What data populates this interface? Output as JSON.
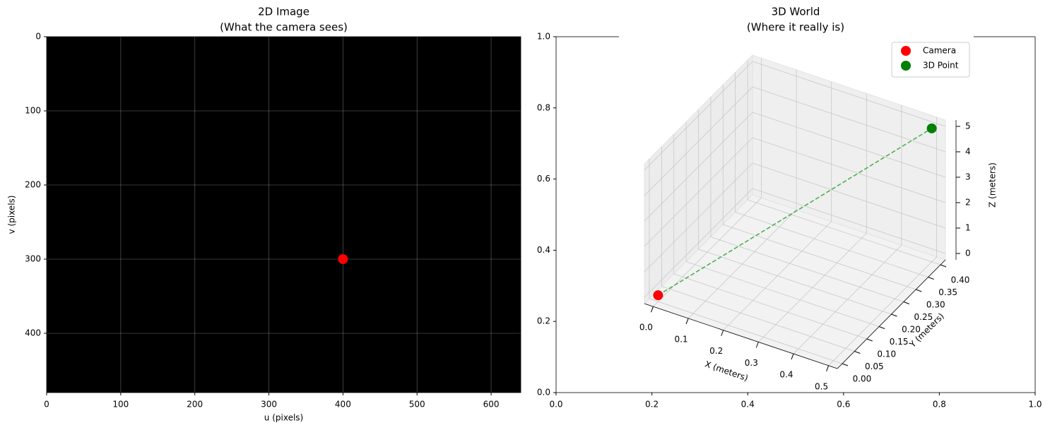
{
  "chart_data": [
    {
      "type": "scatter",
      "title": [
        "2D Image",
        "(What the camera sees)"
      ],
      "xlabel": "u (pixels)",
      "ylabel": "v (pixels)",
      "xlim": [
        0,
        640
      ],
      "ylim": [
        480,
        0
      ],
      "xticks": [
        0,
        100,
        200,
        300,
        400,
        500,
        600
      ],
      "yticks": [
        0,
        100,
        200,
        300,
        400
      ],
      "background": "#000000",
      "grid": true,
      "series": [
        {
          "color": "#ff0000",
          "x": [
            400
          ],
          "values": [
            300
          ]
        }
      ]
    },
    {
      "type": "scatter3d",
      "title": [
        "3D World",
        "(Where it really is)"
      ],
      "xlim": [
        0,
        1
      ],
      "ylim": [
        0,
        1
      ],
      "xticks": [
        {
          "value": 0,
          "label": "0.0"
        },
        {
          "value": 0.2,
          "label": "0.2"
        },
        {
          "value": 0.4,
          "label": "0.4"
        },
        {
          "value": 0.6,
          "label": "0.6"
        },
        {
          "value": 0.8,
          "label": "0.8"
        },
        {
          "value": 1,
          "label": "1.0"
        }
      ],
      "yticks": [
        {
          "value": 0,
          "label": "0.0"
        },
        {
          "value": 0.2,
          "label": "0.2"
        },
        {
          "value": 0.4,
          "label": "0.4"
        },
        {
          "value": 0.6,
          "label": "0.6"
        },
        {
          "value": 0.8,
          "label": "0.8"
        },
        {
          "value": 1,
          "label": "1.0"
        }
      ],
      "axes3d": {
        "xlabel": "X (meters)",
        "ylabel": "Y (meters)",
        "zlabel": "Z (meters)",
        "xlim": [
          -0.025,
          0.525
        ],
        "ylim": [
          -0.02,
          0.42
        ],
        "zlim": [
          -0.25,
          5.25
        ],
        "xticks": [
          {
            "value": 0,
            "label": "0.0"
          },
          {
            "value": 0.1,
            "label": "0.1"
          },
          {
            "value": 0.2,
            "label": "0.2"
          },
          {
            "value": 0.3,
            "label": "0.3"
          },
          {
            "value": 0.4,
            "label": "0.4"
          },
          {
            "value": 0.5,
            "label": "0.5"
          }
        ],
        "yticks": [
          {
            "value": 0,
            "label": "0.00"
          },
          {
            "value": 0.05,
            "label": "0.05"
          },
          {
            "value": 0.1,
            "label": "0.10"
          },
          {
            "value": 0.15,
            "label": "0.15"
          },
          {
            "value": 0.2,
            "label": "0.20"
          },
          {
            "value": 0.25,
            "label": "0.25"
          },
          {
            "value": 0.3,
            "label": "0.30"
          },
          {
            "value": 0.35,
            "label": "0.35"
          },
          {
            "value": 0.4,
            "label": "0.40"
          }
        ],
        "zticks": [
          0,
          1,
          2,
          3,
          4,
          5
        ],
        "grid": true
      },
      "legend": "upper right",
      "series": [
        {
          "name": "Camera",
          "color": "#ff0000",
          "x": [
            0
          ],
          "y": [
            0
          ],
          "z": [
            0
          ]
        },
        {
          "name": "3D Point",
          "color": "#008000",
          "x": [
            0.5
          ],
          "y": [
            0.4
          ],
          "z": [
            5
          ]
        },
        {
          "color": "#4caf50",
          "style": "dashed",
          "x": [
            0,
            0.5
          ],
          "y": [
            0,
            0.4
          ],
          "z": [
            0,
            5
          ]
        }
      ]
    }
  ]
}
